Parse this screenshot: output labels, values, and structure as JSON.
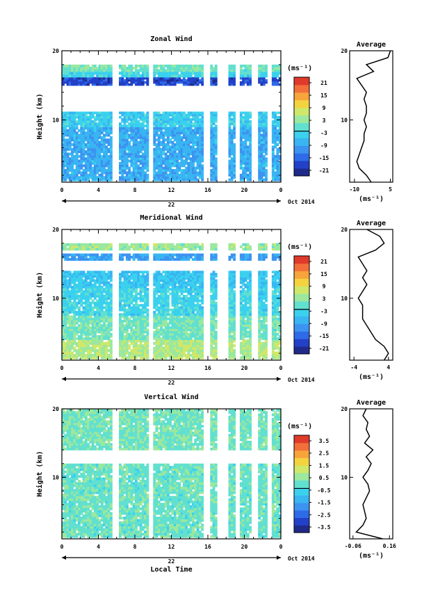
{
  "chart_data": [
    {
      "type": "heatmap",
      "title": "Zonal Wind",
      "ylabel": "Height (km)",
      "xlabel": "",
      "x_ticks": [
        "0",
        "4",
        "8",
        "12",
        "16",
        "20",
        "0"
      ],
      "y_ticks": [
        "20",
        "10"
      ],
      "date_label": "22",
      "date_right": "Oct 2014",
      "xlim": [
        0,
        24
      ],
      "ylim": [
        1,
        20
      ],
      "colorbar": {
        "unit": "(ms⁻¹)",
        "ticks": [
          "21",
          "15",
          "9",
          "3",
          "-3",
          "-9",
          "-15",
          "-21"
        ],
        "range": [
          -24,
          24
        ]
      },
      "gaps_hours": [
        5.8,
        9.6,
        15.8,
        17.1,
        17.8,
        19.2,
        21.0,
        22.6
      ],
      "bands": [
        {
          "z_bottom": 1.2,
          "z_top": 9.0,
          "value": -8
        },
        {
          "z_bottom": 9.0,
          "z_top": 11.2,
          "value": -4
        },
        {
          "z_bottom": 15.0,
          "z_top": 16.2,
          "value": -18
        },
        {
          "z_bottom": 16.2,
          "z_top": 17.0,
          "value": -3
        },
        {
          "z_bottom": 17.0,
          "z_top": 18.0,
          "value": 1
        }
      ],
      "profile": {
        "title": "Average",
        "xlabel": "(ms⁻¹)",
        "x_ticks": [
          "-10",
          "5"
        ],
        "y_ticks": [
          "20",
          "10"
        ],
        "xlim": [
          -12,
          6
        ],
        "z": [
          1,
          2,
          3,
          4,
          5,
          6,
          7,
          8,
          9,
          10,
          11,
          12,
          13,
          14,
          15,
          16,
          17,
          18,
          19,
          20
        ],
        "values": [
          -3,
          -5,
          -8,
          -9,
          -8,
          -7,
          -6,
          -6,
          -5,
          -6,
          -5,
          -5,
          -6,
          -5,
          -7,
          -9,
          -2,
          -5,
          4,
          5
        ]
      }
    },
    {
      "type": "heatmap",
      "title": "Meridional Wind",
      "ylabel": "Height (km)",
      "xlabel": "",
      "x_ticks": [
        "0",
        "4",
        "8",
        "12",
        "16",
        "20",
        "0"
      ],
      "y_ticks": [
        "20",
        "10"
      ],
      "date_label": "22",
      "date_right": "Oct 2014",
      "xlim": [
        0,
        24
      ],
      "ylim": [
        1,
        20
      ],
      "colorbar": {
        "unit": "(ms⁻¹)",
        "ticks": [
          "21",
          "15",
          "9",
          "3",
          "-3",
          "-9",
          "-15",
          "-21"
        ],
        "range": [
          -24,
          24
        ]
      },
      "gaps_hours": [
        5.8,
        9.6,
        15.8,
        17.1,
        17.8,
        19.2,
        21.0,
        22.6
      ],
      "bands": [
        {
          "z_bottom": 1.2,
          "z_top": 4.0,
          "value": 5
        },
        {
          "z_bottom": 4.0,
          "z_top": 7.5,
          "value": 1
        },
        {
          "z_bottom": 7.5,
          "z_top": 11.5,
          "value": -3
        },
        {
          "z_bottom": 11.5,
          "z_top": 14.0,
          "value": -5
        },
        {
          "z_bottom": 15.5,
          "z_top": 16.5,
          "value": -10
        },
        {
          "z_bottom": 17.0,
          "z_top": 18.0,
          "value": 4
        }
      ],
      "profile": {
        "title": "Average",
        "xlabel": "(ms⁻¹)",
        "x_ticks": [
          "-4",
          "4"
        ],
        "y_ticks": [
          "20",
          "10"
        ],
        "xlim": [
          -5,
          5
        ],
        "z": [
          1,
          2,
          3,
          4,
          5,
          6,
          7,
          8,
          9,
          10,
          11,
          12,
          13,
          14,
          15,
          16,
          17,
          18,
          19,
          20
        ],
        "values": [
          3,
          4,
          3,
          1,
          0,
          -1,
          -2,
          -2,
          -2,
          -3,
          -2,
          -1,
          -2,
          -1,
          -2,
          -3,
          1,
          3,
          2,
          -1
        ]
      }
    },
    {
      "type": "heatmap",
      "title": "Vertical Wind",
      "ylabel": "Height (km)",
      "xlabel": "Local Time",
      "x_ticks": [
        "0",
        "4",
        "8",
        "12",
        "16",
        "20",
        "0"
      ],
      "y_ticks": [
        "20",
        "10"
      ],
      "date_label": "22",
      "date_right": "Oct 2014",
      "xlim": [
        0,
        24
      ],
      "ylim": [
        1,
        20
      ],
      "colorbar": {
        "unit": "(ms⁻¹)",
        "ticks": [
          "3.5",
          "2.5",
          "1.5",
          "0.5",
          "-0.5",
          "-1.5",
          "-2.5",
          "-3.5"
        ],
        "range": [
          -4,
          4
        ]
      },
      "gaps_hours": [
        5.8,
        9.6,
        15.8,
        17.1,
        17.8,
        19.2,
        21.0,
        22.6
      ],
      "bands": [
        {
          "z_bottom": 1.2,
          "z_top": 12.0,
          "value": 0.1
        },
        {
          "z_bottom": 14.0,
          "z_top": 20.0,
          "value": 0.2
        }
      ],
      "profile": {
        "title": "Average",
        "xlabel": "(ms⁻¹)",
        "x_ticks": [
          "-0.06",
          "0.16"
        ],
        "y_ticks": [
          "20",
          "10"
        ],
        "xlim": [
          -0.08,
          0.18
        ],
        "z": [
          1,
          2,
          3,
          4,
          5,
          6,
          7,
          8,
          9,
          10,
          11,
          12,
          13,
          14,
          15,
          16,
          17,
          18,
          19,
          20
        ],
        "values": [
          0.12,
          -0.04,
          0.0,
          0.02,
          0.01,
          0.0,
          0.02,
          0.04,
          0.03,
          0.0,
          0.03,
          0.05,
          0.02,
          0.06,
          0.01,
          0.04,
          0.02,
          0.03,
          0.0,
          0.02
        ]
      }
    }
  ]
}
